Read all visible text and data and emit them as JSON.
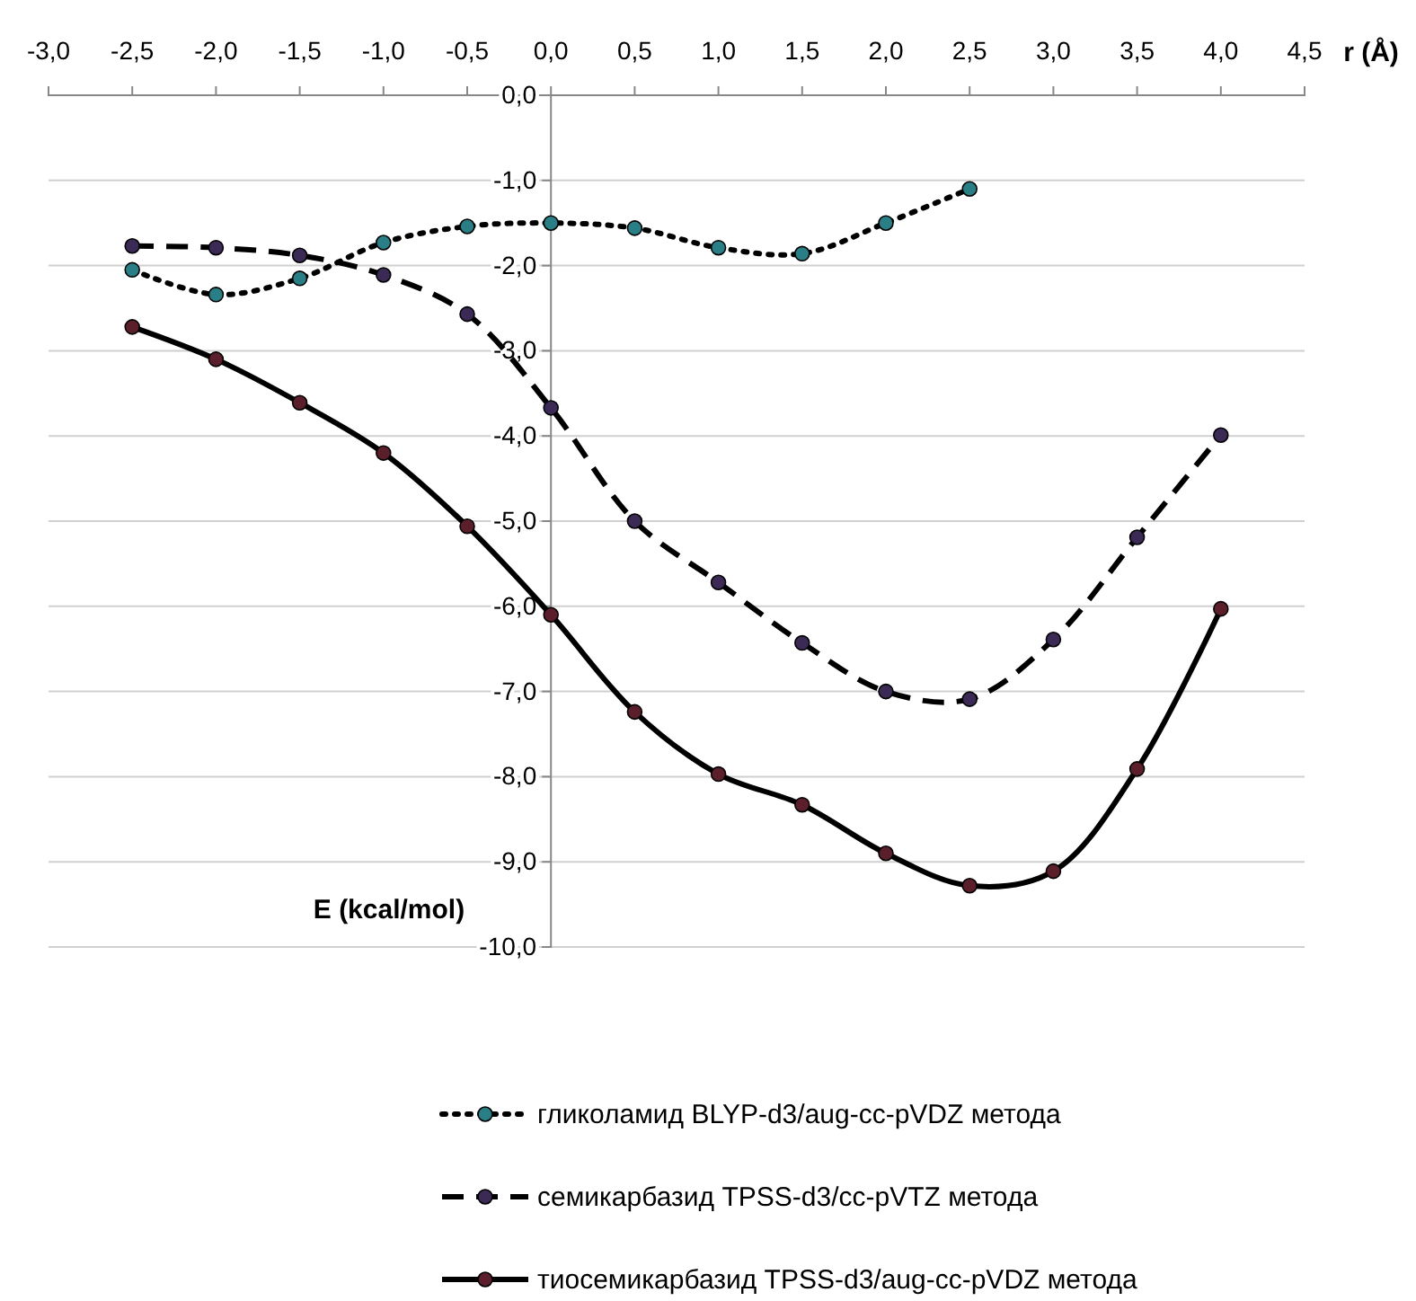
{
  "chart_data": {
    "type": "line",
    "xlabel": "r (Å)",
    "ylabel": "E (kcal/mol)",
    "xlim": [
      -3,
      4.5
    ],
    "ylim": [
      -10,
      0
    ],
    "xticks": [
      {
        "value": -3,
        "label": "-3,0"
      },
      {
        "value": -2.5,
        "label": "-2,5"
      },
      {
        "value": -2,
        "label": "-2,0"
      },
      {
        "value": -1.5,
        "label": "-1,5"
      },
      {
        "value": -1,
        "label": "-1,0"
      },
      {
        "value": -0.5,
        "label": "-0,5"
      },
      {
        "value": 0,
        "label": "0,0"
      },
      {
        "value": 0.5,
        "label": "0,5"
      },
      {
        "value": 1,
        "label": "1,0"
      },
      {
        "value": 1.5,
        "label": "1,5"
      },
      {
        "value": 2,
        "label": "2,0"
      },
      {
        "value": 2.5,
        "label": "2,5"
      },
      {
        "value": 3,
        "label": "3,0"
      },
      {
        "value": 3.5,
        "label": "3,5"
      },
      {
        "value": 4,
        "label": "4,0"
      },
      {
        "value": 4.5,
        "label": "4,5"
      }
    ],
    "yticks": [
      {
        "value": 0,
        "label": "0,0"
      },
      {
        "value": -1,
        "label": "-1,0"
      },
      {
        "value": -2,
        "label": "-2,0"
      },
      {
        "value": -3,
        "label": "-3,0"
      },
      {
        "value": -4,
        "label": "-4,0"
      },
      {
        "value": -5,
        "label": "-5,0"
      },
      {
        "value": -6,
        "label": "-6,0"
      },
      {
        "value": -7,
        "label": "-7,0"
      },
      {
        "value": -8,
        "label": "-8,0"
      },
      {
        "value": -9,
        "label": "-9,0"
      },
      {
        "value": -10,
        "label": "-10,0"
      }
    ],
    "grid": "y",
    "legend": "bottom",
    "marker": "circle",
    "series": [
      {
        "name": "гликоламид BLYP-d3/aug-cc-pVDZ метода",
        "color": "#2a7f86",
        "line_style": "dotted",
        "x": [
          -2.5,
          -2,
          -1.5,
          -1,
          -0.5,
          0,
          0.5,
          1,
          1.5,
          2,
          2.5
        ],
        "values": [
          -2.05,
          -2.34,
          -2.15,
          -1.73,
          -1.54,
          -1.5,
          -1.56,
          -1.79,
          -1.86,
          -1.5,
          -1.1
        ]
      },
      {
        "name": "семикарбазид TPSS-d3/cc-pVTZ метода",
        "color": "#3b2a55",
        "line_style": "dashed",
        "x": [
          -2.5,
          -2,
          -1.5,
          -1,
          -0.5,
          0,
          0.5,
          1,
          1.5,
          2,
          2.5,
          3,
          3.5,
          4
        ],
        "values": [
          -1.77,
          -1.79,
          -1.88,
          -2.11,
          -2.57,
          -3.67,
          -5.0,
          -5.72,
          -6.43,
          -7.0,
          -7.09,
          -6.39,
          -5.19,
          -3.99
        ]
      },
      {
        "name": "тиосемикарбазид TPSS-d3/aug-cc-pVDZ метода",
        "color": "#5a1f2a",
        "line_style": "solid",
        "x": [
          -2.5,
          -2,
          -1.5,
          -1,
          -0.5,
          0,
          0.5,
          1,
          1.5,
          2,
          2.5,
          3,
          3.5,
          4
        ],
        "values": [
          -2.72,
          -3.1,
          -3.61,
          -4.2,
          -5.06,
          -6.1,
          -7.24,
          -7.97,
          -8.33,
          -8.9,
          -9.28,
          -9.11,
          -7.91,
          -6.03
        ]
      }
    ]
  }
}
